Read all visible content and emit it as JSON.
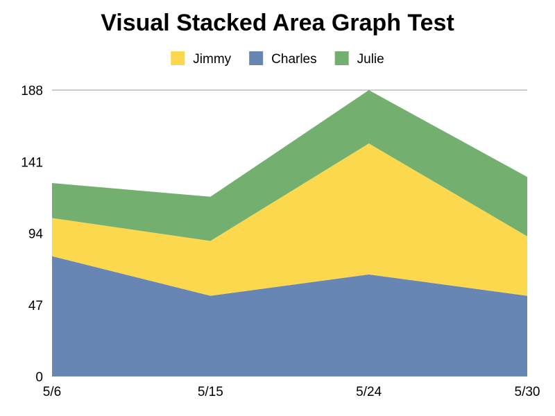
{
  "chart_data": {
    "type": "area",
    "stacked": true,
    "title": "Visual Stacked Area Graph Test",
    "xlabel": "",
    "ylabel": "",
    "categories": [
      "5/6",
      "5/15",
      "5/24",
      "5/30"
    ],
    "ylim": [
      0,
      188
    ],
    "yticks": [
      0,
      47,
      94,
      141,
      188
    ],
    "grid": false,
    "legend_position": "top",
    "series": [
      {
        "name": "Charles",
        "values": [
          79,
          53,
          67,
          53
        ],
        "color": "#6886b4"
      },
      {
        "name": "Jimmy",
        "values": [
          25,
          36,
          86,
          39
        ],
        "color": "#fcd84e"
      },
      {
        "name": "Julie",
        "values": [
          23,
          29,
          35,
          39
        ],
        "color": "#73b06f"
      }
    ],
    "legend_order": [
      "Jimmy",
      "Charles",
      "Julie"
    ]
  }
}
